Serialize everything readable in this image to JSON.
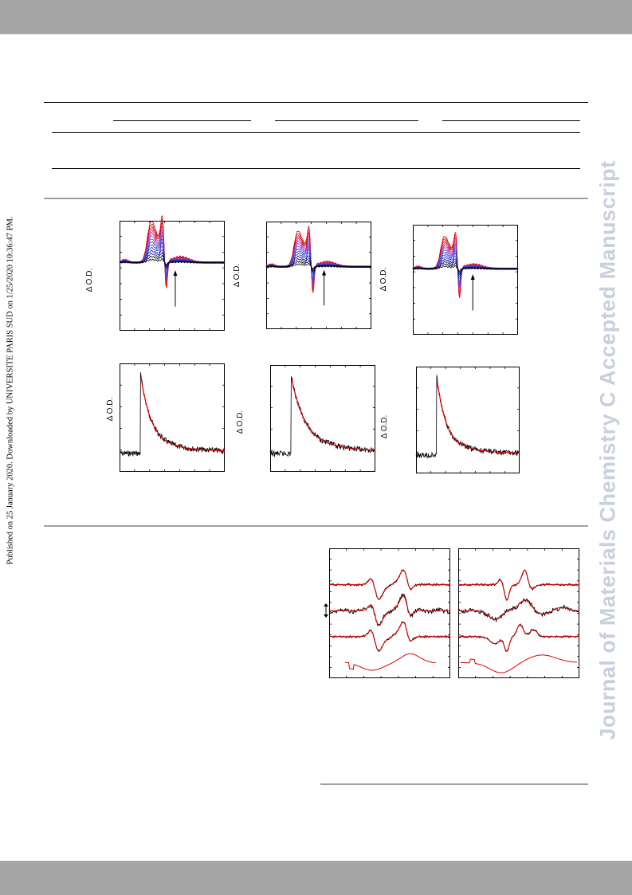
{
  "header_bar": {
    "color": "#a6a6a6"
  },
  "footer_bar": {
    "color": "#a6a6a6"
  },
  "sidenote": "Published on 25 January 2020. Downloaded by UNIVERSITE PARIS SUD on 1/25/2020 10:36:47 PM.",
  "watermark": "Journal of Materials Chemistry C Accepted Manuscript",
  "figure_top": {
    "transient_panels": [
      {
        "ylabel": "Δ O.D."
      },
      {
        "ylabel": "Δ O.D."
      },
      {
        "ylabel": "Δ O.D."
      }
    ],
    "decay_panels": [
      {
        "ylabel": "Δ O.D."
      },
      {
        "ylabel": "Δ O.D."
      },
      {
        "ylabel": "Δ O.D."
      }
    ]
  },
  "figure_bottom": {
    "colors": {
      "data": "#000000",
      "fit": "#e00000"
    }
  },
  "chart_colors": [
    "#e00000",
    "#c0208a",
    "#7a3fc8",
    "#2a3fd0",
    "#0a0a8a",
    "#000000"
  ]
}
